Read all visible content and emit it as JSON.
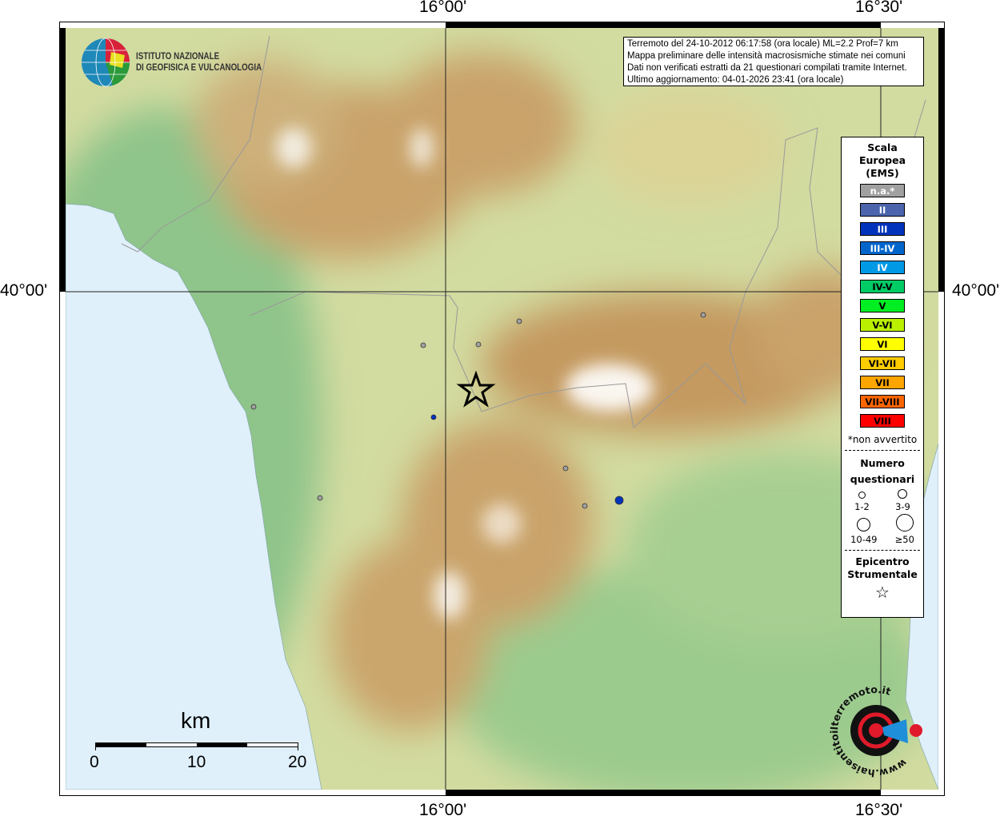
{
  "graticule": {
    "lon_left": "16°00'",
    "lon_right": "16°30'",
    "lat": "40°00'"
  },
  "info": {
    "lines": [
      "Terremoto del 24-10-2012 06:17:58 (ora locale) ML=2.2 Prof=7 km",
      "Mappa preliminare delle intensità macrosismiche stimate nei comuni",
      "Dati non verificati estratti da 21 questionari compilati tramite Internet.",
      "Ultimo aggiornamento: 04-01-2026 23:41 (ora locale)"
    ]
  },
  "logo": {
    "line1": "ISTITUTO NAZIONALE",
    "line2": "DI GEOFISICA E VULCANOLOGIA"
  },
  "logo2": {
    "text": "www.haisentitoilterremoto.it"
  },
  "legend": {
    "title": [
      "Scala",
      "Europea",
      "(EMS)"
    ],
    "classes": [
      {
        "label": "n.a.*",
        "color": "#a0a0a0",
        "text": "#fff"
      },
      {
        "label": "II",
        "color": "#4b64ad",
        "text": "#fff"
      },
      {
        "label": "III",
        "color": "#0033bb",
        "text": "#fff"
      },
      {
        "label": "III-IV",
        "color": "#0066cc",
        "text": "#fff"
      },
      {
        "label": "IV",
        "color": "#0099e6",
        "text": "#fff"
      },
      {
        "label": "IV-V",
        "color": "#00cc66",
        "text": "#000"
      },
      {
        "label": "V",
        "color": "#00ee22",
        "text": "#000"
      },
      {
        "label": "V-VI",
        "color": "#bbf000",
        "text": "#000"
      },
      {
        "label": "VI",
        "color": "#ffff00",
        "text": "#000"
      },
      {
        "label": "VI-VII",
        "color": "#ffcc00",
        "text": "#000"
      },
      {
        "label": "VII",
        "color": "#ffa500",
        "text": "#000"
      },
      {
        "label": "VII-VIII",
        "color": "#ff6600",
        "text": "#000"
      },
      {
        "label": "VIII",
        "color": "#ff0000",
        "text": "#000"
      }
    ],
    "note": "*non avvertito",
    "count_title": [
      "Numero",
      "questionari"
    ],
    "counts": [
      "1-2",
      "3-9",
      "10-49",
      "≥50"
    ],
    "epi_title": [
      "Epicentro",
      "Strumentale"
    ]
  },
  "scale": {
    "unit": "km",
    "labels": [
      "0",
      "10",
      "20"
    ]
  },
  "colors": {
    "sea": "#dff0fb",
    "gray_point": "#a0a0a0",
    "blue_point": "#0033bb"
  }
}
